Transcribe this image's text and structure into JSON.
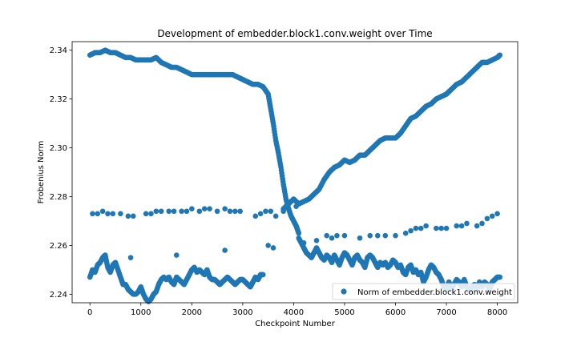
{
  "chart_data": {
    "type": "scatter",
    "title": "Development of embedder.block1.conv.weight over Time",
    "xlabel": "Checkpoint Number",
    "ylabel": "Frobenius Norm",
    "xlim": [
      -350,
      8400
    ],
    "ylim": [
      2.2365,
      2.3435
    ],
    "xticks": [
      0,
      1000,
      2000,
      3000,
      4000,
      5000,
      6000,
      7000,
      8000
    ],
    "yticks": [
      2.24,
      2.26,
      2.28,
      2.3,
      2.32,
      2.34
    ],
    "ytick_labels": [
      "2.24",
      "2.26",
      "2.28",
      "2.30",
      "2.32",
      "2.34"
    ],
    "grid": false,
    "legend_position": "lower-right",
    "point_color": "#1f77b4",
    "series": [
      {
        "name": "Norm of embedder.block1.conv.weight",
        "branch_upper_x": [
          0,
          100,
          200,
          300,
          400,
          500,
          600,
          700,
          800,
          900,
          1000,
          1100,
          1200,
          1300,
          1400,
          1500,
          1600,
          1700,
          1800,
          1900,
          2000,
          2100,
          2200,
          2300,
          2400,
          2500,
          2600,
          2700,
          2800,
          2900,
          3000,
          3100,
          3200,
          3300,
          3400,
          3500,
          3550,
          3600,
          3650,
          3700,
          3750,
          3800,
          3850,
          3900,
          3950,
          4000,
          4050,
          4100
        ],
        "branch_upper_y": [
          2.338,
          2.339,
          2.339,
          2.34,
          2.339,
          2.339,
          2.338,
          2.337,
          2.337,
          2.336,
          2.336,
          2.336,
          2.336,
          2.337,
          2.335,
          2.334,
          2.333,
          2.333,
          2.332,
          2.331,
          2.33,
          2.33,
          2.33,
          2.33,
          2.33,
          2.33,
          2.33,
          2.33,
          2.33,
          2.329,
          2.328,
          2.327,
          2.326,
          2.326,
          2.325,
          2.322,
          2.316,
          2.31,
          2.303,
          2.298,
          2.292,
          2.285,
          2.279,
          2.275,
          2.272,
          2.27,
          2.268,
          2.265
        ],
        "branch_rising_x": [
          3800,
          3900,
          4000,
          4100,
          4200,
          4300,
          4400,
          4500,
          4600,
          4700,
          4800,
          4900,
          5000,
          5100,
          5200,
          5300,
          5400,
          5500,
          5600,
          5700,
          5800,
          5900,
          6000,
          6100,
          6200,
          6300,
          6400,
          6500,
          6600,
          6700,
          6800,
          6900,
          7000,
          7100,
          7200,
          7300,
          7400,
          7500,
          7600,
          7700,
          7800,
          7900,
          8000,
          8050
        ],
        "branch_rising_y": [
          2.275,
          2.277,
          2.279,
          2.277,
          2.278,
          2.279,
          2.281,
          2.283,
          2.287,
          2.29,
          2.292,
          2.293,
          2.295,
          2.294,
          2.295,
          2.297,
          2.297,
          2.299,
          2.301,
          2.303,
          2.304,
          2.304,
          2.304,
          2.306,
          2.309,
          2.312,
          2.313,
          2.315,
          2.317,
          2.318,
          2.32,
          2.321,
          2.322,
          2.324,
          2.326,
          2.327,
          2.329,
          2.331,
          2.333,
          2.335,
          2.335,
          2.336,
          2.337,
          2.338
        ],
        "branch_sparse_x": [
          50,
          150,
          250,
          350,
          450,
          600,
          750,
          850,
          1100,
          1200,
          1300,
          1400,
          1550,
          1650,
          1800,
          1900,
          2000,
          2150,
          2250,
          2350,
          2500,
          2650,
          2750,
          2850,
          2950,
          3250,
          3350,
          3450,
          3550,
          3650,
          3800,
          3900,
          4050,
          4200,
          4450,
          4650,
          4750,
          4850,
          5000,
          5300,
          5500,
          5650,
          5800,
          6000,
          6200,
          6300,
          6400,
          6500,
          6600,
          6800,
          6900,
          7000,
          7200,
          7300,
          7400,
          7600,
          7700,
          7800,
          7900,
          8000
        ],
        "branch_sparse_y": [
          2.273,
          2.273,
          2.274,
          2.273,
          2.273,
          2.273,
          2.272,
          2.272,
          2.273,
          2.273,
          2.274,
          2.274,
          2.274,
          2.274,
          2.274,
          2.274,
          2.275,
          2.274,
          2.275,
          2.275,
          2.274,
          2.275,
          2.274,
          2.274,
          2.274,
          2.272,
          2.273,
          2.274,
          2.274,
          2.272,
          2.274,
          2.275,
          2.276,
          2.261,
          2.262,
          2.264,
          2.263,
          2.264,
          2.264,
          2.263,
          2.264,
          2.264,
          2.264,
          2.264,
          2.265,
          2.266,
          2.267,
          2.267,
          2.268,
          2.267,
          2.267,
          2.267,
          2.268,
          2.268,
          2.269,
          2.268,
          2.269,
          2.271,
          2.272,
          2.273
        ],
        "branch_lower_x": [
          0,
          50,
          100,
          150,
          200,
          250,
          300,
          350,
          400,
          450,
          500,
          550,
          600,
          650,
          700,
          750,
          800,
          850,
          900,
          950,
          1000,
          1050,
          1100,
          1150,
          1200,
          1250,
          1300,
          1350,
          1400,
          1450,
          1500,
          1550,
          1600,
          1650,
          1700,
          1750,
          1800,
          1850,
          1900,
          1950,
          2000,
          2050,
          2100,
          2150,
          2200,
          2250,
          2300,
          2350,
          2400,
          2450,
          2500,
          2550,
          2600,
          2650,
          2700,
          2750,
          2800,
          2850,
          2900,
          2950,
          3000,
          3050,
          3100,
          3150,
          3200,
          3250,
          3300,
          3350,
          3400
        ],
        "branch_lower_y": [
          2.247,
          2.25,
          2.249,
          2.252,
          2.253,
          2.255,
          2.256,
          2.251,
          2.249,
          2.252,
          2.253,
          2.25,
          2.247,
          2.244,
          2.244,
          2.242,
          2.241,
          2.24,
          2.24,
          2.241,
          2.243,
          2.24,
          2.238,
          2.237,
          2.238,
          2.24,
          2.241,
          2.244,
          2.246,
          2.247,
          2.246,
          2.247,
          2.245,
          2.244,
          2.247,
          2.246,
          2.245,
          2.244,
          2.246,
          2.248,
          2.25,
          2.251,
          2.249,
          2.25,
          2.249,
          2.248,
          2.25,
          2.247,
          2.246,
          2.246,
          2.245,
          2.244,
          2.245,
          2.246,
          2.247,
          2.246,
          2.245,
          2.244,
          2.245,
          2.246,
          2.246,
          2.245,
          2.244,
          2.243,
          2.245,
          2.247,
          2.246,
          2.248,
          2.248
        ],
        "branch_lower_outliers_x": [
          800,
          1700,
          2650,
          3500,
          3600
        ],
        "branch_lower_outliers_y": [
          2.255,
          2.256,
          2.258,
          2.26,
          2.259
        ],
        "branch_falling_x": [
          4100,
          4150,
          4200,
          4250,
          4300,
          4350,
          4400,
          4450,
          4500,
          4550,
          4600,
          4650,
          4700,
          4750,
          4800,
          4850,
          4900,
          4950,
          5000,
          5050,
          5100,
          5150,
          5200,
          5250,
          5300,
          5350,
          5400,
          5450,
          5500,
          5550,
          5600,
          5650,
          5700,
          5750,
          5800,
          5850,
          5900,
          5950,
          6000,
          6050,
          6100,
          6150,
          6200,
          6250,
          6300,
          6350,
          6400,
          6450,
          6500,
          6550,
          6600,
          6650,
          6700,
          6750,
          6800,
          6850,
          6900,
          6950,
          7000,
          7050,
          7100,
          7150,
          7200,
          7250,
          7300,
          7350,
          7400,
          7450,
          7500,
          7550,
          7600,
          7650,
          7700,
          7750,
          7800,
          7850,
          7900,
          7950,
          8000,
          8050
        ],
        "branch_falling_y": [
          2.263,
          2.261,
          2.259,
          2.257,
          2.256,
          2.255,
          2.257,
          2.259,
          2.257,
          2.255,
          2.254,
          2.256,
          2.255,
          2.253,
          2.256,
          2.254,
          2.252,
          2.255,
          2.257,
          2.256,
          2.254,
          2.252,
          2.255,
          2.256,
          2.254,
          2.253,
          2.251,
          2.255,
          2.256,
          2.255,
          2.253,
          2.251,
          2.253,
          2.252,
          2.253,
          2.251,
          2.252,
          2.254,
          2.253,
          2.251,
          2.252,
          2.249,
          2.248,
          2.251,
          2.252,
          2.249,
          2.25,
          2.248,
          2.249,
          2.245,
          2.247,
          2.25,
          2.252,
          2.251,
          2.249,
          2.248,
          2.246,
          2.243,
          2.242,
          2.245,
          2.242,
          2.244,
          2.246,
          2.245,
          2.243,
          2.246,
          2.243,
          2.241,
          2.243,
          2.244,
          2.242,
          2.245,
          2.243,
          2.245,
          2.244,
          2.242,
          2.245,
          2.246,
          2.247,
          2.247
        ]
      }
    ]
  }
}
